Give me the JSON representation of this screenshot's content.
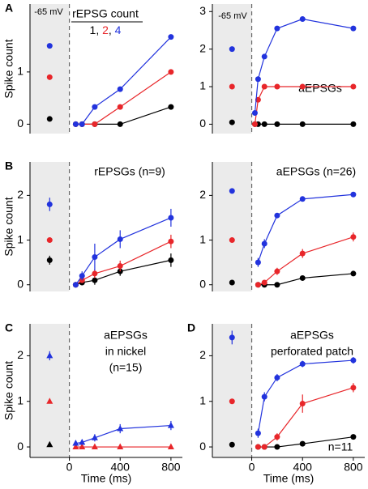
{
  "chart_data": [
    {
      "type": "line",
      "panel_label": "A",
      "ylabel": "Spike count",
      "annotations": [
        "-65 mV",
        "rEPSG count"
      ],
      "legend_separator": ", ",
      "x": [
        50,
        100,
        200,
        400,
        800
      ],
      "xlim": [
        -310,
        890
      ],
      "ylim": [
        -0.18,
        2.3
      ],
      "yticks": [
        0,
        1
      ],
      "marker": "circle",
      "series": [
        {
          "name": "1",
          "color": "#000000",
          "baseline": 0.1,
          "values": [
            0,
            0,
            0,
            0,
            0.33
          ]
        },
        {
          "name": "2",
          "color": "#e8262a",
          "baseline": 0.9,
          "values": [
            0,
            0,
            0,
            0.33,
            1.0
          ]
        },
        {
          "name": "4",
          "color": "#2233dd",
          "baseline": 1.5,
          "values": [
            0,
            0,
            0.33,
            0.67,
            1.67
          ]
        }
      ]
    },
    {
      "type": "line",
      "annotations": [
        "-65 mV",
        "aEPSGs"
      ],
      "x": [
        25,
        50,
        100,
        200,
        400,
        800
      ],
      "xlim": [
        -310,
        890
      ],
      "ylim": [
        -0.25,
        3.2
      ],
      "yticks": [
        0,
        1,
        2,
        3
      ],
      "marker": "circle",
      "series": [
        {
          "color": "#000000",
          "baseline": 0.05,
          "values": [
            0,
            0,
            0,
            0,
            0,
            0
          ]
        },
        {
          "color": "#e8262a",
          "baseline": 1.0,
          "values": [
            0,
            0.65,
            1.0,
            1.0,
            1.0,
            1.0
          ]
        },
        {
          "color": "#2233dd",
          "baseline": 2.0,
          "values": [
            0.3,
            1.2,
            1.8,
            2.55,
            2.8,
            2.55
          ]
        }
      ]
    },
    {
      "type": "line",
      "panel_label": "B",
      "ylabel": "Spike count",
      "annotations": [
        "rEPSGs (n=9)"
      ],
      "x": [
        50,
        100,
        200,
        400,
        800
      ],
      "xlim": [
        -310,
        890
      ],
      "ylim": [
        -0.15,
        2.75
      ],
      "yticks": [
        0,
        1,
        2
      ],
      "marker": "circle",
      "series": [
        {
          "color": "#000000",
          "baseline": 0.55,
          "baseline_error": 0.1,
          "values": [
            0,
            0.05,
            0.1,
            0.3,
            0.55
          ],
          "errors": [
            0,
            0.05,
            0.1,
            0.1,
            0.15
          ]
        },
        {
          "color": "#e8262a",
          "baseline": 1.0,
          "baseline_error": 0.03,
          "values": [
            0,
            0.1,
            0.25,
            0.42,
            0.97
          ],
          "errors": [
            0,
            0.05,
            0.1,
            0.12,
            0.15
          ]
        },
        {
          "color": "#2233dd",
          "baseline": 1.8,
          "baseline_error": 0.15,
          "values": [
            0,
            0.2,
            0.62,
            1.02,
            1.5
          ],
          "errors": [
            0,
            0.1,
            0.3,
            0.2,
            0.2
          ]
        }
      ]
    },
    {
      "type": "line",
      "annotations": [
        "aEPSGs (n=26)"
      ],
      "x": [
        50,
        100,
        200,
        400,
        800
      ],
      "xlim": [
        -310,
        890
      ],
      "ylim": [
        -0.15,
        2.75
      ],
      "yticks": [
        0,
        1,
        2
      ],
      "marker": "circle",
      "series": [
        {
          "color": "#000000",
          "baseline": 0.05,
          "values": [
            0,
            0,
            0,
            0.15,
            0.25
          ],
          "errors": [
            0,
            0,
            0,
            0.05,
            0.05
          ]
        },
        {
          "color": "#e8262a",
          "baseline": 1.0,
          "values": [
            0,
            0.05,
            0.3,
            0.7,
            1.07
          ],
          "errors": [
            0,
            0.05,
            0.08,
            0.1,
            0.1
          ]
        },
        {
          "color": "#2233dd",
          "baseline": 2.1,
          "values": [
            0.5,
            0.92,
            1.55,
            1.92,
            2.02
          ],
          "errors": [
            0.1,
            0.1,
            0.05,
            0.05,
            0.03
          ]
        }
      ]
    },
    {
      "type": "line",
      "panel_label": "C",
      "ylabel": "Spike count",
      "xlabel": "Time (ms)",
      "annotations": [
        "aEPSGs",
        "in nickel",
        "(n=15)"
      ],
      "x": [
        50,
        100,
        200,
        400,
        800
      ],
      "xlim": [
        -310,
        890
      ],
      "xticks": [
        0,
        400,
        800
      ],
      "ylim": [
        -0.23,
        2.7
      ],
      "yticks": [
        0,
        1,
        2
      ],
      "marker": "triangle",
      "series": [
        {
          "color": "#000000",
          "baseline": 0.05
        },
        {
          "color": "#e8262a",
          "baseline": 1.0,
          "values": [
            0,
            0,
            0,
            0,
            0
          ]
        },
        {
          "color": "#2233dd",
          "baseline": 2.0,
          "baseline_error": 0.1,
          "values": [
            0.08,
            0.1,
            0.2,
            0.4,
            0.47
          ],
          "errors": [
            0.05,
            0.05,
            0.08,
            0.1,
            0.1
          ]
        }
      ]
    },
    {
      "type": "line",
      "panel_label": "D",
      "xlabel": "Time (ms)",
      "annotations": [
        "aEPSGs",
        "perforated patch",
        "n=11"
      ],
      "x": [
        50,
        100,
        200,
        400,
        800
      ],
      "xlim": [
        -310,
        890
      ],
      "xticks": [
        0,
        400,
        800
      ],
      "ylim": [
        -0.23,
        2.7
      ],
      "yticks": [
        0,
        1,
        2
      ],
      "marker": "circle",
      "series": [
        {
          "color": "#000000",
          "baseline": 0.05,
          "values": [
            0,
            0,
            0,
            0.07,
            0.22
          ],
          "errors": [
            0,
            0,
            0,
            0.05,
            0.05
          ]
        },
        {
          "color": "#e8262a",
          "baseline": 1.0,
          "values": [
            0,
            0,
            0.22,
            0.95,
            1.3
          ],
          "errors": [
            0,
            0,
            0.08,
            0.2,
            0.1
          ]
        },
        {
          "color": "#2233dd",
          "baseline": 2.4,
          "baseline_error": 0.15,
          "values": [
            0.3,
            1.1,
            1.52,
            1.82,
            1.9
          ],
          "errors": [
            0.1,
            0.1,
            0.08,
            0.07,
            0.07
          ]
        }
      ]
    }
  ]
}
